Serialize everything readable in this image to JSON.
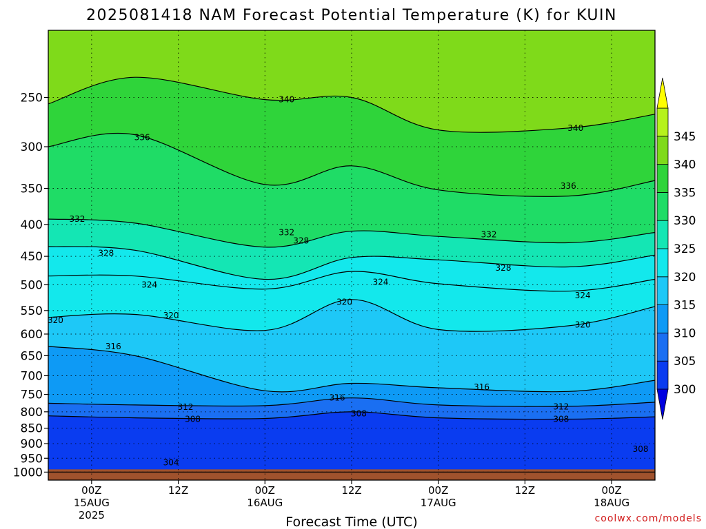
{
  "chart_data": {
    "type": "contour",
    "title": "2025081418 NAM Forecast Potential Temperature (K) for KUIN",
    "xlabel": "Forecast Time (UTC)",
    "ylabel": "",
    "y_scale": "log",
    "ylim": [
      1030,
      195
    ],
    "xlim_hours": [
      -6,
      78
    ],
    "x_ticks": [
      {
        "hour": 0,
        "label": "00Z",
        "sub": "15AUG",
        "sub2": "2025"
      },
      {
        "hour": 12,
        "label": "12Z",
        "sub": "",
        "sub2": ""
      },
      {
        "hour": 24,
        "label": "00Z",
        "sub": "16AUG",
        "sub2": ""
      },
      {
        "hour": 36,
        "label": "12Z",
        "sub": "",
        "sub2": ""
      },
      {
        "hour": 48,
        "label": "00Z",
        "sub": "17AUG",
        "sub2": ""
      },
      {
        "hour": 60,
        "label": "12Z",
        "sub": "",
        "sub2": ""
      },
      {
        "hour": 72,
        "label": "00Z",
        "sub": "18AUG",
        "sub2": ""
      }
    ],
    "y_ticks": [
      250,
      300,
      350,
      400,
      450,
      500,
      550,
      600,
      650,
      700,
      750,
      800,
      850,
      900,
      950,
      1000
    ],
    "y_tick_labels": [
      "250",
      "300",
      "350",
      "400",
      "450",
      "500",
      "550",
      "600",
      "650",
      "700",
      "750",
      "800",
      "850",
      "900",
      "950",
      "1000"
    ],
    "grid": "dotted",
    "colorbar": {
      "placement": "right",
      "levels": [
        300,
        305,
        310,
        315,
        320,
        325,
        330,
        335,
        340,
        345
      ],
      "labels": [
        "300",
        "305",
        "310",
        "315",
        "320",
        "325",
        "330",
        "335",
        "340",
        "345"
      ],
      "colors": [
        "#0a3cf0",
        "#1a6ff2",
        "#0e9af5",
        "#1ec8f7",
        "#13e8ec",
        "#14e6b4",
        "#1fdc66",
        "#2fd43a",
        "#7fda1a",
        "#b6f21c"
      ],
      "under_color": "#0000e0",
      "over_color": "#ffff00"
    },
    "terrain_color": "#a0522d",
    "profile_hours": [
      -6,
      6,
      24,
      36,
      48,
      66,
      78
    ],
    "isentropes": [
      {
        "theta": 304,
        "p": [
          1000,
          1000,
          1000,
          1000,
          1000,
          1000,
          1000
        ]
      },
      {
        "theta": 308,
        "p": [
          812,
          818,
          820,
          800,
          818,
          822,
          815
        ]
      },
      {
        "theta": 312,
        "p": [
          775,
          780,
          782,
          760,
          780,
          784,
          772
        ]
      },
      {
        "theta": 316,
        "p": [
          628,
          650,
          740,
          720,
          732,
          742,
          712
        ]
      },
      {
        "theta": 320,
        "p": [
          564,
          558,
          592,
          528,
          590,
          582,
          542
        ]
      },
      {
        "theta": 324,
        "p": [
          484,
          484,
          508,
          476,
          498,
          512,
          490
        ]
      },
      {
        "theta": 328,
        "p": [
          434,
          440,
          490,
          452,
          456,
          468,
          448
        ]
      },
      {
        "theta": 332,
        "p": [
          392,
          398,
          435,
          410,
          418,
          428,
          412
        ]
      },
      {
        "theta": 336,
        "p": [
          300,
          287,
          345,
          322,
          352,
          360,
          340
        ]
      },
      {
        "theta": 340,
        "p": [
          256,
          232,
          252,
          250,
          282,
          280,
          266
        ]
      }
    ],
    "contour_labels": [
      {
        "text": "304",
        "hour": 11,
        "p": 965
      },
      {
        "text": "308",
        "hour": 14,
        "p": 822
      },
      {
        "text": "308",
        "hour": 37,
        "p": 805
      },
      {
        "text": "308",
        "hour": 65,
        "p": 822
      },
      {
        "text": "308",
        "hour": 76,
        "p": 918
      },
      {
        "text": "312",
        "hour": 13,
        "p": 786
      },
      {
        "text": "312",
        "hour": 65,
        "p": 785
      },
      {
        "text": "316",
        "hour": 3,
        "p": 628
      },
      {
        "text": "316",
        "hour": 34,
        "p": 760
      },
      {
        "text": "316",
        "hour": 54,
        "p": 730
      },
      {
        "text": "320",
        "hour": -5,
        "p": 570
      },
      {
        "text": "320",
        "hour": 11,
        "p": 560
      },
      {
        "text": "320",
        "hour": 35,
        "p": 533
      },
      {
        "text": "320",
        "hour": 68,
        "p": 580
      },
      {
        "text": "324",
        "hour": 8,
        "p": 500
      },
      {
        "text": "324",
        "hour": 40,
        "p": 495
      },
      {
        "text": "324",
        "hour": 68,
        "p": 520
      },
      {
        "text": "328",
        "hour": 2,
        "p": 445
      },
      {
        "text": "328",
        "hour": 29,
        "p": 425
      },
      {
        "text": "328",
        "hour": 57,
        "p": 470
      },
      {
        "text": "332",
        "hour": -2,
        "p": 392
      },
      {
        "text": "332",
        "hour": 27,
        "p": 412
      },
      {
        "text": "332",
        "hour": 55,
        "p": 415
      },
      {
        "text": "336",
        "hour": 7,
        "p": 290
      },
      {
        "text": "336",
        "hour": 66,
        "p": 347
      },
      {
        "text": "340",
        "hour": 27,
        "p": 252
      },
      {
        "text": "340",
        "hour": 67,
        "p": 280
      }
    ]
  },
  "footer": {
    "credit": "coolwx.com/models"
  }
}
